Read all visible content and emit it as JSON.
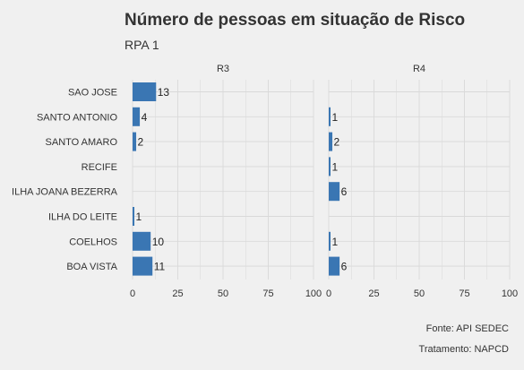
{
  "title": "Número de pessoas em situação de Risco",
  "subtitle": "RPA 1",
  "caption": [
    "Fonte: API SEDEC",
    "Tratamento: NAPCD"
  ],
  "colors": {
    "bar": "#3a76b3",
    "background": "#f0f0f0",
    "grid": "#d9d9d9",
    "text": "#333333"
  },
  "chart_data": {
    "type": "bar",
    "orientation": "horizontal",
    "categories": [
      "SAO JOSE",
      "SANTO ANTONIO",
      "SANTO AMARO",
      "RECIFE",
      "ILHA JOANA BEZERRA",
      "ILHA DO LEITE",
      "COELHOS",
      "BOA VISTA"
    ],
    "xlim": [
      0,
      100
    ],
    "xticks": [
      0,
      25,
      50,
      75,
      100
    ],
    "grid": true,
    "panels": [
      {
        "name": "R3",
        "values": [
          13,
          4,
          2,
          null,
          null,
          1,
          10,
          11
        ]
      },
      {
        "name": "R4",
        "values": [
          null,
          1,
          2,
          1,
          6,
          null,
          1,
          6
        ]
      }
    ]
  }
}
